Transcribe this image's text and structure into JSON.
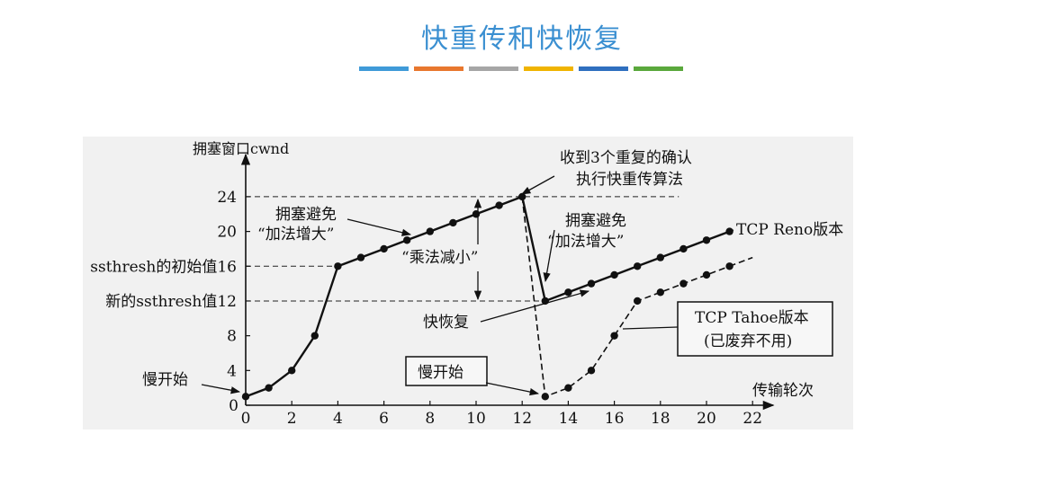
{
  "header": {
    "title": "快重传和快恢复",
    "accent_colors": [
      "#3f9ad8",
      "#e8772e",
      "#a6a6a6",
      "#f0b400",
      "#2f6fbf",
      "#5aa83c"
    ]
  },
  "chart_data": {
    "type": "line",
    "ylabel": "拥塞窗口cwnd",
    "xlabel": "传输轮次",
    "xlim": [
      0,
      22
    ],
    "ylim": [
      0,
      24
    ],
    "x_ticks": [
      "0",
      "2",
      "4",
      "6",
      "8",
      "10",
      "12",
      "14",
      "16",
      "18",
      "20",
      "22"
    ],
    "y_ticks": [
      "0",
      "4",
      "8",
      "12",
      "16",
      "20",
      "24"
    ],
    "y_tick_values": [
      0,
      4,
      8,
      12,
      16,
      20,
      24
    ],
    "series": [
      {
        "name": "TCP Reno版本",
        "style": "solid",
        "points": [
          [
            0,
            1
          ],
          [
            1,
            2
          ],
          [
            2,
            4
          ],
          [
            3,
            8
          ],
          [
            4,
            16
          ],
          [
            5,
            17
          ],
          [
            6,
            18
          ],
          [
            7,
            19
          ],
          [
            8,
            20
          ],
          [
            9,
            21
          ],
          [
            10,
            22
          ],
          [
            11,
            23
          ],
          [
            12,
            24
          ],
          [
            13,
            12
          ],
          [
            14,
            13
          ],
          [
            15,
            14
          ],
          [
            16,
            15
          ],
          [
            17,
            16
          ],
          [
            18,
            17
          ],
          [
            19,
            18
          ],
          [
            20,
            19
          ],
          [
            21,
            20
          ]
        ]
      },
      {
        "name": "TCP Tahoe版本",
        "style": "dashed",
        "points": [
          [
            12,
            24
          ],
          [
            13,
            1
          ],
          [
            14,
            2
          ],
          [
            15,
            4
          ],
          [
            16,
            8
          ],
          [
            17,
            12
          ],
          [
            18,
            13
          ],
          [
            19,
            14
          ],
          [
            20,
            15
          ],
          [
            21,
            16
          ]
        ],
        "extend_to": [
          22,
          17
        ]
      }
    ],
    "reference_lines": [
      {
        "y": 24,
        "label": "24"
      },
      {
        "y": 16,
        "label": "ssthresh的初始值16"
      },
      {
        "y": 12,
        "label": "新的ssthresh值12"
      }
    ],
    "annotations": {
      "slow_start_1": "慢开始",
      "slow_start_2": "慢开始",
      "ca1_line1": "拥塞避免",
      "ca1_line2": "“加法增大”",
      "md": "“乘法减小”",
      "ack3_line1": "收到3个重复的确认",
      "ack3_line2": "执行快重传算法",
      "ca2_line1": "拥塞避免",
      "ca2_line2": "“加法增大”",
      "reno": "TCP Reno版本",
      "fast_recovery": "快恢复",
      "tahoe_line1": "TCP Tahoe版本",
      "tahoe_line2": "(已废弃不用)"
    }
  }
}
